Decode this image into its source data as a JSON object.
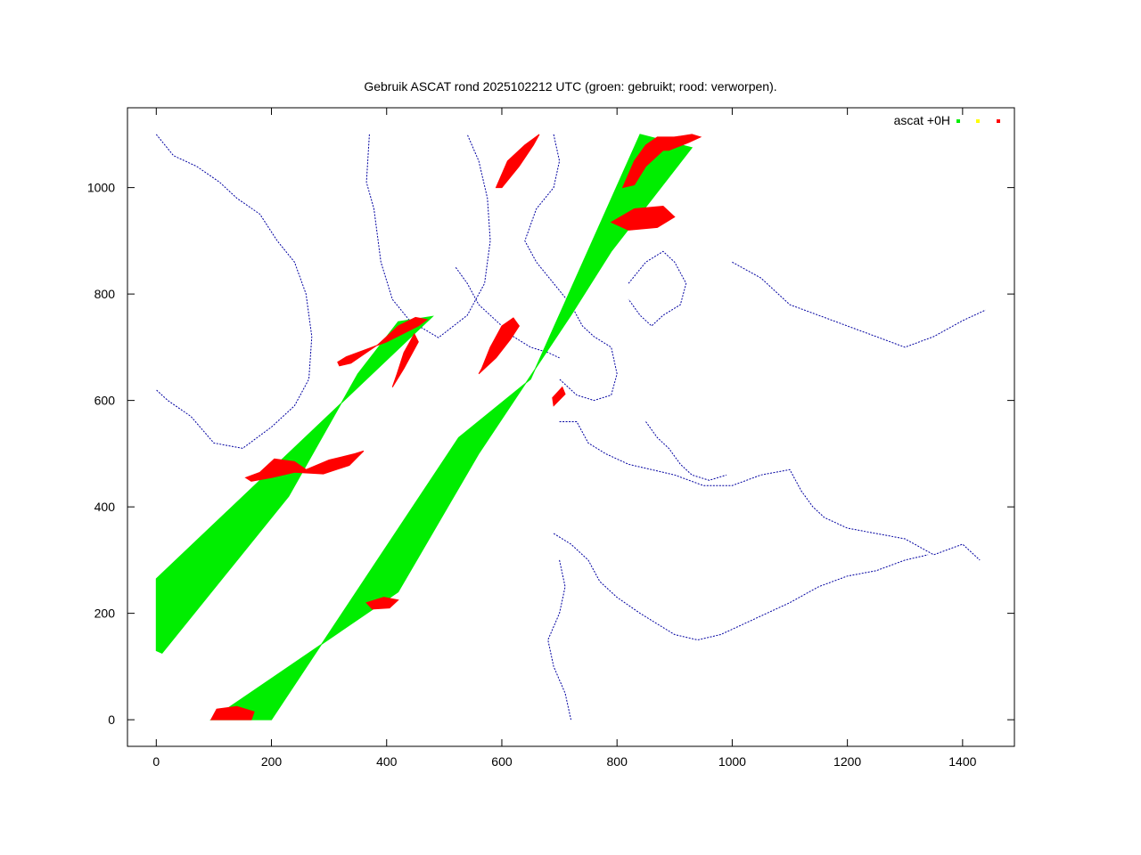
{
  "chart_data": {
    "type": "scatter",
    "title": "Gebruik ASCAT rond 2025102212 UTC (groen: gebruikt; rood: verworpen).",
    "xlabel": "",
    "ylabel": "",
    "xlim": [
      -50,
      1490
    ],
    "ylim": [
      -50,
      1150
    ],
    "x_ticks": [
      0,
      200,
      400,
      600,
      800,
      1000,
      1200,
      1400
    ],
    "y_ticks": [
      0,
      200,
      400,
      600,
      800,
      1000
    ],
    "x_tick_labels": [
      "0",
      "200",
      "400",
      "600",
      "800",
      "1000",
      "1200",
      "1400"
    ],
    "y_tick_labels": [
      "0",
      "200",
      "400",
      "600",
      "800",
      "1000"
    ],
    "grid": false,
    "legend": {
      "placement": "top-right",
      "title": "ascat +0H"
    },
    "series": [
      {
        "role": "used",
        "color": "#00ee00",
        "swaths": [
          {
            "polygon": [
              [
                0,
                130
              ],
              [
                0,
                265
              ],
              [
                480,
                758
              ],
              [
                420,
                748
              ],
              [
                350,
                650
              ],
              [
                230,
                420
              ],
              [
                10,
                125
              ]
            ]
          },
          {
            "polygon": [
              [
                95,
                0
              ],
              [
                200,
                0
              ],
              [
                525,
                530
              ],
              [
                650,
                640
              ],
              [
                840,
                1100
              ],
              [
                930,
                1075
              ],
              [
                790,
                880
              ],
              [
                720,
                760
              ],
              [
                560,
                500
              ],
              [
                420,
                240
              ]
            ]
          }
        ]
      },
      {
        "role": "rejected",
        "color": "#ff0000",
        "regions": [
          {
            "polygon": [
              [
                315,
                672
              ],
              [
                330,
                682
              ],
              [
                400,
                710
              ],
              [
                455,
                740
              ],
              [
                470,
                752
              ],
              [
                450,
                756
              ],
              [
                420,
                740
              ],
              [
                385,
                705
              ],
              [
                338,
                670
              ],
              [
                318,
                665
              ]
            ]
          },
          {
            "polygon": [
              [
                410,
                625
              ],
              [
                430,
                660
              ],
              [
                455,
                710
              ],
              [
                448,
                725
              ],
              [
                430,
                690
              ],
              [
                418,
                650
              ]
            ]
          },
          {
            "polygon": [
              [
                155,
                455
              ],
              [
                180,
                465
              ],
              [
                205,
                490
              ],
              [
                240,
                485
              ],
              [
                260,
                470
              ],
              [
                300,
                488
              ],
              [
                345,
                500
              ],
              [
                360,
                505
              ],
              [
                335,
                478
              ],
              [
                290,
                462
              ],
              [
                240,
                465
              ],
              [
                200,
                455
              ],
              [
                165,
                448
              ]
            ]
          },
          {
            "polygon": [
              [
                565,
                660
              ],
              [
                580,
                700
              ],
              [
                600,
                740
              ],
              [
                620,
                755
              ],
              [
                630,
                740
              ],
              [
                615,
                715
              ],
              [
                590,
                680
              ],
              [
                560,
                650
              ]
            ]
          },
          {
            "polygon": [
              [
                690,
                590
              ],
              [
                710,
                612
              ],
              [
                705,
                625
              ],
              [
                688,
                605
              ]
            ]
          },
          {
            "polygon": [
              [
                365,
                220
              ],
              [
                395,
                230
              ],
              [
                420,
                225
              ],
              [
                405,
                210
              ],
              [
                375,
                208
              ]
            ]
          },
          {
            "polygon": [
              [
                95,
                0
              ],
              [
                165,
                0
              ],
              [
                170,
                15
              ],
              [
                140,
                25
              ],
              [
                105,
                20
              ]
            ]
          },
          {
            "polygon": [
              [
                590,
                1000
              ],
              [
                610,
                1050
              ],
              [
                640,
                1080
              ],
              [
                665,
                1100
              ],
              [
                655,
                1080
              ],
              [
                630,
                1040
              ],
              [
                600,
                1000
              ]
            ]
          },
          {
            "polygon": [
              [
                790,
                935
              ],
              [
                830,
                960
              ],
              [
                880,
                965
              ],
              [
                900,
                945
              ],
              [
                870,
                925
              ],
              [
                820,
                920
              ]
            ]
          },
          {
            "polygon": [
              [
                810,
                1000
              ],
              [
                830,
                1050
              ],
              [
                850,
                1080
              ],
              [
                870,
                1095
              ],
              [
                900,
                1095
              ],
              [
                880,
                1070
              ],
              [
                850,
                1040
              ],
              [
                830,
                1005
              ]
            ]
          },
          {
            "polygon": [
              [
                860,
                1070
              ],
              [
                900,
                1095
              ],
              [
                930,
                1100
              ],
              [
                945,
                1095
              ],
              [
                925,
                1085
              ],
              [
                890,
                1070
              ]
            ]
          }
        ]
      },
      {
        "role": "coastline",
        "color": "#0000a0",
        "lines": [
          [
            [
              370,
              1100
            ],
            [
              365,
              1010
            ],
            [
              378,
              960
            ],
            [
              390,
              860
            ],
            [
              410,
              790
            ],
            [
              440,
              750
            ],
            [
              490,
              718
            ],
            [
              540,
              760
            ],
            [
              570,
              820
            ],
            [
              580,
              900
            ],
            [
              575,
              980
            ],
            [
              560,
              1050
            ],
            [
              540,
              1100
            ]
          ],
          [
            [
              0,
              1100
            ],
            [
              30,
              1060
            ],
            [
              70,
              1040
            ],
            [
              110,
              1010
            ],
            [
              140,
              980
            ],
            [
              180,
              950
            ],
            [
              210,
              900
            ],
            [
              240,
              860
            ],
            [
              260,
              800
            ],
            [
              270,
              720
            ],
            [
              265,
              640
            ],
            [
              240,
              590
            ],
            [
              200,
              550
            ],
            [
              150,
              510
            ],
            [
              100,
              520
            ],
            [
              60,
              570
            ],
            [
              20,
              600
            ],
            [
              0,
              620
            ]
          ],
          [
            [
              690,
              1100
            ],
            [
              700,
              1050
            ],
            [
              690,
              1000
            ],
            [
              660,
              960
            ],
            [
              640,
              900
            ],
            [
              660,
              860
            ],
            [
              690,
              820
            ],
            [
              720,
              780
            ],
            [
              740,
              740
            ],
            [
              760,
              720
            ],
            [
              790,
              700
            ],
            [
              800,
              650
            ],
            [
              790,
              610
            ],
            [
              760,
              600
            ],
            [
              730,
              610
            ],
            [
              700,
              640
            ]
          ],
          [
            [
              820,
              820
            ],
            [
              850,
              860
            ],
            [
              880,
              880
            ],
            [
              900,
              860
            ],
            [
              920,
              820
            ],
            [
              910,
              780
            ],
            [
              880,
              760
            ],
            [
              860,
              740
            ],
            [
              840,
              760
            ],
            [
              820,
              790
            ]
          ],
          [
            [
              700,
              560
            ],
            [
              730,
              560
            ],
            [
              750,
              520
            ],
            [
              780,
              500
            ],
            [
              820,
              480
            ],
            [
              860,
              470
            ],
            [
              900,
              460
            ],
            [
              950,
              440
            ],
            [
              1000,
              440
            ],
            [
              1050,
              460
            ],
            [
              1100,
              470
            ],
            [
              1120,
              430
            ],
            [
              1140,
              400
            ],
            [
              1160,
              380
            ],
            [
              1200,
              360
            ],
            [
              1250,
              350
            ],
            [
              1300,
              340
            ],
            [
              1350,
              310
            ],
            [
              1400,
              330
            ],
            [
              1430,
              300
            ]
          ],
          [
            [
              690,
              350
            ],
            [
              720,
              330
            ],
            [
              750,
              300
            ],
            [
              770,
              260
            ],
            [
              800,
              230
            ],
            [
              840,
              200
            ],
            [
              870,
              180
            ],
            [
              900,
              160
            ],
            [
              940,
              150
            ],
            [
              980,
              160
            ],
            [
              1020,
              180
            ],
            [
              1060,
              200
            ],
            [
              1100,
              220
            ],
            [
              1150,
              250
            ],
            [
              1200,
              270
            ],
            [
              1250,
              280
            ],
            [
              1300,
              300
            ],
            [
              1340,
              310
            ]
          ],
          [
            [
              700,
              300
            ],
            [
              710,
              250
            ],
            [
              700,
              200
            ],
            [
              680,
              150
            ],
            [
              690,
              100
            ],
            [
              710,
              50
            ],
            [
              720,
              0
            ]
          ],
          [
            [
              1000,
              860
            ],
            [
              1050,
              830
            ],
            [
              1100,
              780
            ],
            [
              1150,
              760
            ],
            [
              1200,
              740
            ],
            [
              1250,
              720
            ],
            [
              1300,
              700
            ],
            [
              1350,
              720
            ],
            [
              1400,
              750
            ],
            [
              1440,
              770
            ]
          ],
          [
            [
              520,
              850
            ],
            [
              540,
              820
            ],
            [
              560,
              780
            ],
            [
              590,
              750
            ],
            [
              620,
              720
            ],
            [
              650,
              700
            ],
            [
              680,
              690
            ],
            [
              700,
              680
            ]
          ],
          [
            [
              850,
              560
            ],
            [
              870,
              530
            ],
            [
              890,
              510
            ],
            [
              910,
              480
            ],
            [
              930,
              460
            ],
            [
              960,
              450
            ],
            [
              990,
              460
            ]
          ]
        ]
      }
    ]
  }
}
